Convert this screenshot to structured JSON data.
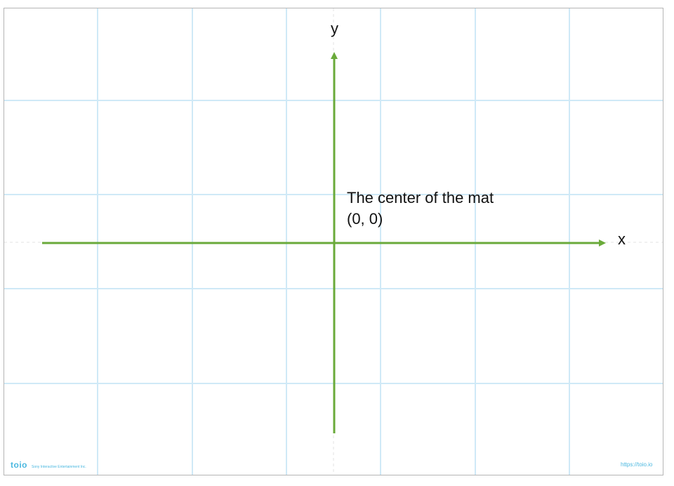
{
  "axes": {
    "x_label": "x",
    "y_label": "y"
  },
  "center_note": {
    "line1": "The center of the mat",
    "line2": "(0, 0)"
  },
  "footer": {
    "brand": "toio",
    "company": "Sony Interactive Entertainment Inc.",
    "url": "https://toio.io"
  },
  "colors": {
    "axis_arrow": "#6aaa3a",
    "grid": "#cfe9f7",
    "brand": "#4bb8e0",
    "border": "#b5b5b5"
  }
}
